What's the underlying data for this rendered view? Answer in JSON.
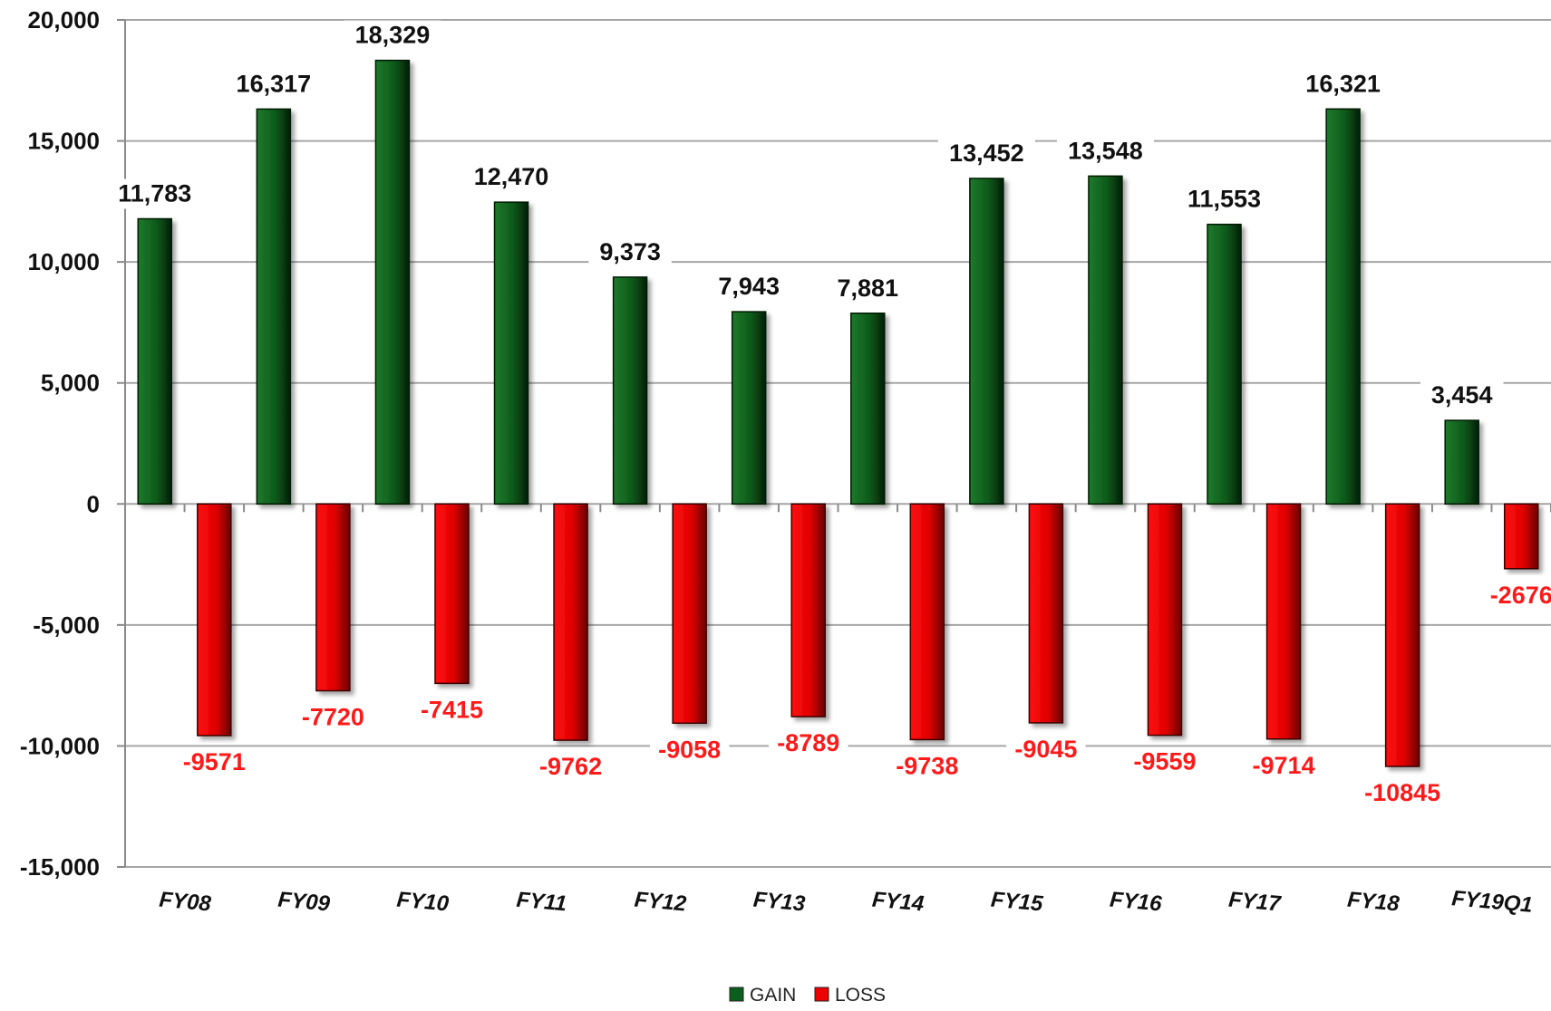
{
  "chart_data": {
    "type": "bar",
    "title": "",
    "xlabel": "",
    "ylabel": "",
    "categories": [
      "FY08",
      "FY09",
      "FY10",
      "FY11",
      "FY12",
      "FY13",
      "FY14",
      "FY15",
      "FY16",
      "FY17",
      "FY18",
      "FY19Q1"
    ],
    "series": [
      {
        "name": "GAIN",
        "color": "#0b5e1c",
        "values": [
          11783,
          16317,
          18329,
          12470,
          9373,
          7943,
          7881,
          13452,
          13548,
          11553,
          16321,
          3454
        ],
        "labels": [
          "11,783",
          "16,317",
          "18,329",
          "12,470",
          "9,373",
          "7,943",
          "7,881",
          "13,452",
          "13,548",
          "11,553",
          "16,321",
          "3,454"
        ]
      },
      {
        "name": "LOSS",
        "color": "#ee0000",
        "values": [
          -9571,
          -7720,
          -7415,
          -9762,
          -9058,
          -8789,
          -9738,
          -9045,
          -9559,
          -9714,
          -10845,
          -2676
        ],
        "labels": [
          "-9571",
          "-7720",
          "-7415",
          "-9762",
          "-9058",
          "-8789",
          "-9738",
          "-9045",
          "-9559",
          "-9714",
          "-10845",
          "-2676"
        ]
      }
    ],
    "ylim": [
      -15000,
      20000
    ],
    "yticks": [
      {
        "value": 20000,
        "label": "20,000"
      },
      {
        "value": 15000,
        "label": "15,000"
      },
      {
        "value": 10000,
        "label": "10,000"
      },
      {
        "value": 5000,
        "label": "5,000"
      },
      {
        "value": 0,
        "label": "0"
      },
      {
        "value": -5000,
        "label": "-5,000"
      },
      {
        "value": -10000,
        "label": "-10,000"
      },
      {
        "value": -15000,
        "label": "-15,000"
      }
    ],
    "grid": true,
    "legend": {
      "position": "bottom",
      "items": [
        {
          "name": "GAIN",
          "color": "#0b5e1c"
        },
        {
          "name": "LOSS",
          "color": "#ee0000"
        }
      ]
    }
  }
}
